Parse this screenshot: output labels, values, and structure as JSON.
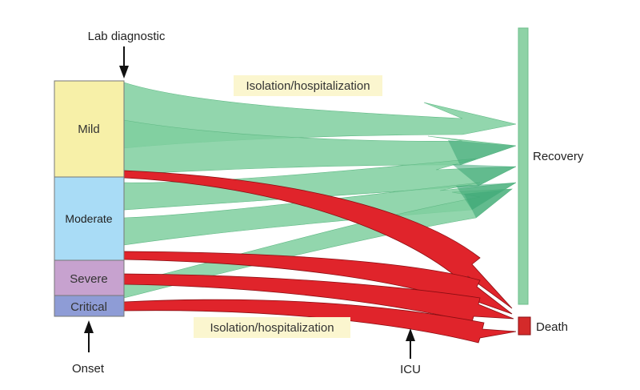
{
  "colors": {
    "mild": "#f7f0a8",
    "moderate": "#a9dcf6",
    "severe": "#c7a2cf",
    "critical": "#8e9cd6",
    "recovery_arrow": "#7fcf9f",
    "recovery_arrow_dark": "#3aa574",
    "death_arrow": "#e0242b",
    "death_arrow_dark": "#9a1015",
    "label_bg": "#fbf6cf",
    "recovery_bar": "#8ed2a6",
    "death_box": "#d42a2a"
  },
  "labels": {
    "lab_diagnostic": "Lab diagnostic",
    "isolation_top": "Isolation/hospitalization",
    "isolation_bottom": "Isolation/hospitalization",
    "onset": "Onset",
    "icu": "ICU",
    "recovery": "Recovery",
    "death": "Death"
  },
  "stages": [
    {
      "id": "mild",
      "label": "Mild"
    },
    {
      "id": "moderate",
      "label": "Moderate"
    },
    {
      "id": "severe",
      "label": "Severe"
    },
    {
      "id": "critical",
      "label": "Critical"
    }
  ]
}
